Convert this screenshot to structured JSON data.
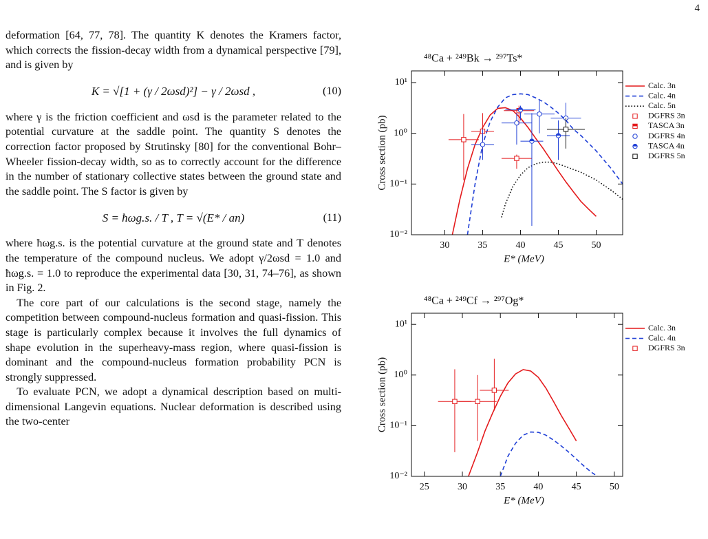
{
  "page_number": "4",
  "body": [
    {
      "text": "deformation [64, 77, 78]. The quantity K denotes the Kramers factor, which corrects the fission-decay width from a dynamical perspective [79], and is given by"
    },
    {
      "equation": "K = √[1 + (γ / 2ωsd)²] − γ / 2ωsd ,",
      "number": "(10)"
    },
    {
      "text": "where γ is the friction coefficient and ωsd is the parameter related to the potential curvature at the saddle point. The quantity S denotes the correction factor proposed by Strutinsky [80] for the conventional Bohr–Wheeler fission-decay width, so as to correctly account for the difference in the number of stationary collective states between the ground state and the saddle point. The S factor is given by"
    },
    {
      "equation": "S = ħωg.s. / T ,    T = √(E* / an)",
      "number": "(11)"
    },
    {
      "text": "where ħωg.s. is the potential curvature at the ground state and T denotes the temperature of the compound nucleus. We adopt γ/2ωsd = 1.0 and ħωg.s. = 1.0 to reproduce the experimental data [30, 31, 74–76], as shown in Fig. 2."
    },
    {
      "text": "The core part of our calculations is the second stage, namely the competition between compound-nucleus formation and quasi-fission. This stage is particularly complex because it involves the full dynamics of shape evolution in the superheavy-mass region, where quasi-fission is dominant and the compound-nucleus formation probability PCN is strongly suppressed."
    },
    {
      "text": "To evaluate PCN, we adopt a dynamical description based on multi-dimensional Langevin equations. Nuclear deformation is described using the two-center"
    }
  ],
  "chart_data": [
    {
      "type": "line",
      "title": "⁴⁸Ca + ²⁴⁹Bk → ²⁹⁷Ts*",
      "x_label": "E* (MeV)",
      "y_label": "Cross section (pb)",
      "log_y": true,
      "xlim": [
        25.6,
        53.5
      ],
      "ylim": [
        0.01,
        17
      ],
      "xticks": [
        30,
        35,
        40,
        45,
        50
      ],
      "yticks": [
        {
          "value": 10,
          "label": "10¹"
        },
        {
          "value": 1,
          "label": "10⁰"
        },
        {
          "value": 0.1,
          "label": "10⁻¹"
        },
        {
          "value": 0.01,
          "label": "10⁻²"
        }
      ],
      "series": [
        {
          "name": "Calc. 3n",
          "color": "#e41a1c",
          "style": "solid",
          "x": [
            31,
            32,
            33,
            34,
            35,
            36,
            37,
            38,
            39,
            40,
            41,
            42,
            43,
            44,
            45,
            46,
            47,
            48,
            49,
            50
          ],
          "values": [
            0.01,
            0.05,
            0.2,
            0.6,
            1.3,
            2.3,
            3.1,
            3.2,
            2.8,
            2.0,
            1.3,
            0.8,
            0.5,
            0.3,
            0.18,
            0.11,
            0.07,
            0.045,
            0.032,
            0.023
          ]
        },
        {
          "name": "Calc. 4n",
          "color": "#1f3fd6",
          "style": "dashed",
          "x": [
            33,
            34,
            35,
            36,
            37,
            38,
            39,
            40,
            41,
            42,
            43,
            44,
            45,
            46,
            47,
            48,
            50,
            52,
            53.5
          ],
          "values": [
            0.01,
            0.1,
            0.6,
            1.7,
            3.3,
            5,
            5.8,
            6.0,
            5.8,
            5.0,
            4.2,
            3.3,
            2.5,
            1.8,
            1.2,
            0.9,
            0.45,
            0.2,
            0.1
          ]
        },
        {
          "name": "Calc. 5n",
          "color": "#111111",
          "style": "dotted",
          "x": [
            37.5,
            38,
            39,
            40,
            41,
            42,
            43,
            44,
            45,
            46,
            48,
            50,
            52,
            53.5
          ],
          "values": [
            0.022,
            0.04,
            0.09,
            0.15,
            0.21,
            0.25,
            0.27,
            0.27,
            0.25,
            0.22,
            0.17,
            0.12,
            0.075,
            0.05
          ]
        },
        {
          "name": "DGFRS 3n",
          "color": "#e41a1c",
          "marker": "open-square",
          "x": [
            32.5,
            35,
            39.5
          ],
          "values": [
            0.75,
            1.1,
            0.32
          ],
          "x_err": [
            2,
            1.5,
            2
          ],
          "y_low": [
            0.12,
            0.4,
            0.2
          ],
          "y_high": [
            2.4,
            2.5,
            0.38
          ]
        },
        {
          "name": "TASCA 3n",
          "color": "#e41a1c",
          "marker": "half-square",
          "x": [
            39.8
          ],
          "values": [
            2.8
          ],
          "x_err": [
            2
          ],
          "y_low": [
            1.5
          ],
          "y_high": [
            3.5
          ]
        },
        {
          "name": "DGFRS 4n",
          "color": "#1f3fd6",
          "marker": "open-circle",
          "x": [
            35,
            39.5,
            42.5,
            46
          ],
          "values": [
            0.6,
            1.6,
            2.4,
            2.0
          ],
          "x_err": [
            1.5,
            2,
            2,
            2
          ],
          "y_low": [
            0.3,
            0.6,
            1,
            0.8
          ],
          "y_high": [
            1.2,
            2.5,
            4.5,
            4
          ]
        },
        {
          "name": "TASCA 4n",
          "color": "#1f3fd6",
          "marker": "half-circle",
          "x": [
            40,
            41.5,
            45
          ],
          "values": [
            2.9,
            0.7,
            0.9
          ],
          "x_err": [
            2,
            1.5,
            1.5
          ],
          "y_low": [
            1.8,
            0.015,
            0.3
          ],
          "y_high": [
            3.5,
            2.5,
            1.8
          ]
        },
        {
          "name": "DGFRS 5n",
          "color": "#111111",
          "marker": "open-square",
          "x": [
            46
          ],
          "values": [
            1.2
          ],
          "x_err": [
            2.5
          ],
          "y_low": [
            0.5
          ],
          "y_high": [
            2
          ]
        }
      ]
    },
    {
      "type": "line",
      "title": "⁴⁸Ca + ²⁴⁹Cf → ²⁹⁷Og*",
      "x_label": "E* (MeV)",
      "y_label": "Cross section (pb)",
      "log_y": true,
      "xlim": [
        23.3,
        51.1
      ],
      "ylim": [
        0.01,
        16.6
      ],
      "xticks": [
        25,
        30,
        35,
        40,
        45,
        50
      ],
      "yticks": [
        {
          "value": 10,
          "label": "10¹"
        },
        {
          "value": 1,
          "label": "10⁰"
        },
        {
          "value": 0.1,
          "label": "10⁻¹"
        },
        {
          "value": 0.01,
          "label": "10⁻²"
        }
      ],
      "series": [
        {
          "name": "Calc. 3n",
          "color": "#e41a1c",
          "style": "solid",
          "x": [
            30.8,
            32,
            33,
            34,
            35,
            36,
            37,
            38,
            39,
            40,
            41,
            42,
            43,
            44,
            45
          ],
          "values": [
            0.01,
            0.03,
            0.08,
            0.18,
            0.38,
            0.7,
            1.05,
            1.28,
            1.2,
            0.9,
            0.55,
            0.3,
            0.16,
            0.09,
            0.05
          ]
        },
        {
          "name": "Calc. 4n",
          "color": "#1f3fd6",
          "style": "dashed",
          "x": [
            35,
            36,
            37,
            38,
            39,
            40,
            41,
            42,
            43,
            44,
            45,
            46,
            47,
            47.8
          ],
          "values": [
            0.01,
            0.025,
            0.045,
            0.065,
            0.075,
            0.074,
            0.065,
            0.052,
            0.04,
            0.03,
            0.022,
            0.016,
            0.012,
            0.01
          ]
        },
        {
          "name": "DGFRS 3n",
          "color": "#e41a1c",
          "marker": "open-square",
          "x": [
            29,
            32,
            34.2
          ],
          "values": [
            0.3,
            0.3,
            0.5
          ],
          "x_err": [
            2.2,
            2.5,
            1.9
          ],
          "y_low": [
            0.03,
            0.05,
            0.2
          ],
          "y_high": [
            1.3,
            1.0,
            2.1
          ]
        }
      ]
    }
  ]
}
